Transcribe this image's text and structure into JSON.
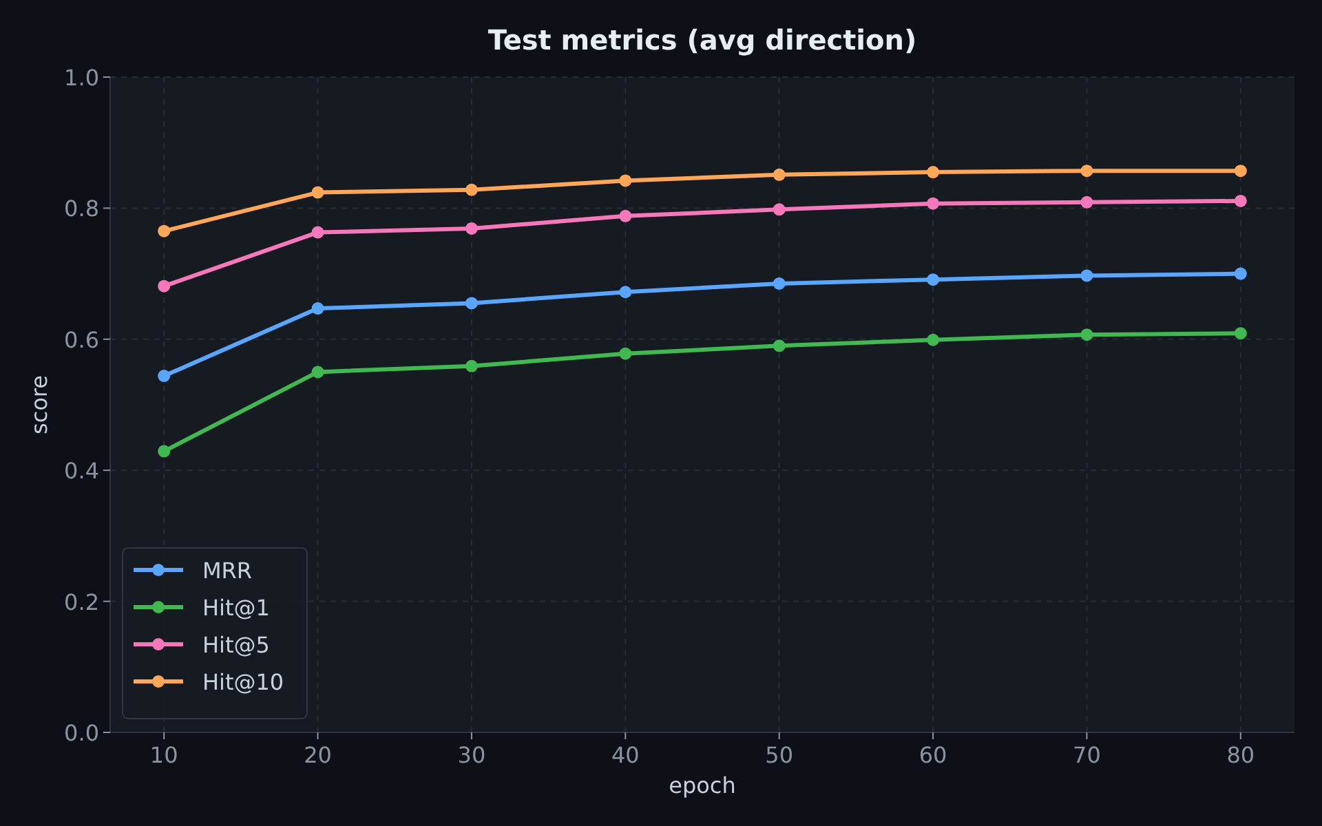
{
  "chart_data": {
    "type": "line",
    "title": "Test metrics (avg direction)",
    "xlabel": "epoch",
    "ylabel": "score",
    "x": [
      10,
      20,
      30,
      40,
      50,
      60,
      70,
      80
    ],
    "series": [
      {
        "name": "MRR",
        "color": "#58a6ff",
        "values": [
          0.544,
          0.647,
          0.655,
          0.672,
          0.685,
          0.691,
          0.697,
          0.7
        ]
      },
      {
        "name": "Hit@1",
        "color": "#3fb950",
        "values": [
          0.429,
          0.55,
          0.559,
          0.578,
          0.59,
          0.599,
          0.607,
          0.609
        ]
      },
      {
        "name": "Hit@5",
        "color": "#f778ba",
        "values": [
          0.681,
          0.763,
          0.769,
          0.788,
          0.798,
          0.807,
          0.809,
          0.811
        ]
      },
      {
        "name": "Hit@10",
        "color": "#ffa657",
        "values": [
          0.765,
          0.824,
          0.828,
          0.842,
          0.851,
          0.855,
          0.857,
          0.857
        ]
      }
    ],
    "xlim": [
      6.5,
      83.5
    ],
    "xticks": [
      10,
      20,
      30,
      40,
      50,
      60,
      70,
      80
    ],
    "ylim": [
      0,
      1
    ],
    "yticks": [
      {
        "value": 0,
        "label": "0.0"
      },
      {
        "value": 0.2,
        "label": "0.2"
      },
      {
        "value": 0.4,
        "label": "0.4"
      },
      {
        "value": 0.6,
        "label": "0.6"
      },
      {
        "value": 0.8,
        "label": "0.8"
      },
      {
        "value": 1,
        "label": "1.0"
      }
    ],
    "grid": true,
    "legend": "bottom left",
    "marker": "circle",
    "line_style": "solid"
  }
}
